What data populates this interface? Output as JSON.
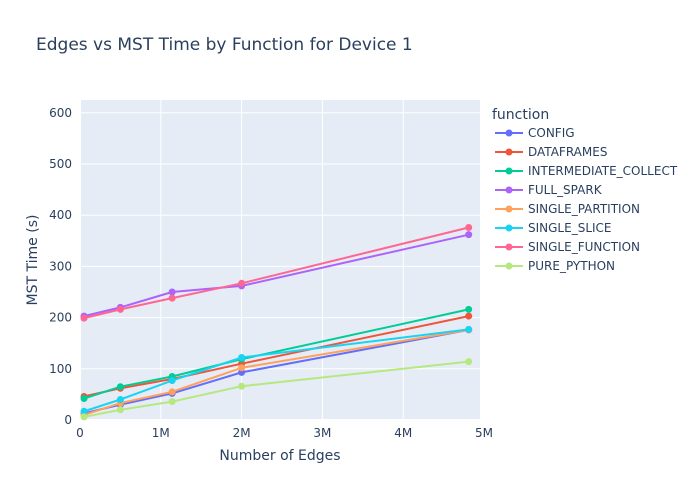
{
  "chart_data": {
    "type": "line",
    "title": "Edges vs MST Time by Function for Device 1",
    "xlabel": "Number of Edges",
    "ylabel": "MST Time (s)",
    "xlim": [
      0,
      4950000
    ],
    "ylim": [
      0,
      625
    ],
    "xticks": [
      0,
      1000000,
      2000000,
      3000000,
      4000000,
      5000000
    ],
    "xtick_labels": [
      "0",
      "1M",
      "2M",
      "3M",
      "4M",
      "5M"
    ],
    "yticks": [
      0,
      100,
      200,
      300,
      400,
      500,
      600
    ],
    "ytick_labels": [
      "0",
      "100",
      "200",
      "300",
      "400",
      "500",
      "600"
    ],
    "grid": true,
    "legend_title": "function",
    "legend_position": "right",
    "x": [
      50000,
      500000,
      1140000,
      2000000,
      4810000
    ],
    "series": [
      {
        "name": "CONFIG",
        "color": "#636efa",
        "values": [
          13,
          30,
          52,
          93,
          176
        ]
      },
      {
        "name": "DATAFRAMES",
        "color": "#EF553B",
        "values": [
          46,
          62,
          80,
          110,
          203
        ]
      },
      {
        "name": "INTERMEDIATE_COLLECT",
        "color": "#00cc96",
        "values": [
          42,
          65,
          85,
          119,
          216
        ]
      },
      {
        "name": "FULL_SPARK",
        "color": "#ab63fa",
        "values": [
          203,
          220,
          250,
          262,
          362
        ]
      },
      {
        "name": "SINGLE_PARTITION",
        "color": "#FFA15A",
        "values": [
          10,
          33,
          55,
          102,
          176
        ]
      },
      {
        "name": "SINGLE_SLICE",
        "color": "#19d3f3",
        "values": [
          17,
          40,
          77,
          122,
          177
        ]
      },
      {
        "name": "SINGLE_FUNCTION",
        "color": "#FF6692",
        "values": [
          199,
          216,
          238,
          267,
          376
        ]
      },
      {
        "name": "PURE_PYTHON",
        "color": "#B6E880",
        "values": [
          6,
          20,
          36,
          66,
          114
        ]
      }
    ]
  }
}
